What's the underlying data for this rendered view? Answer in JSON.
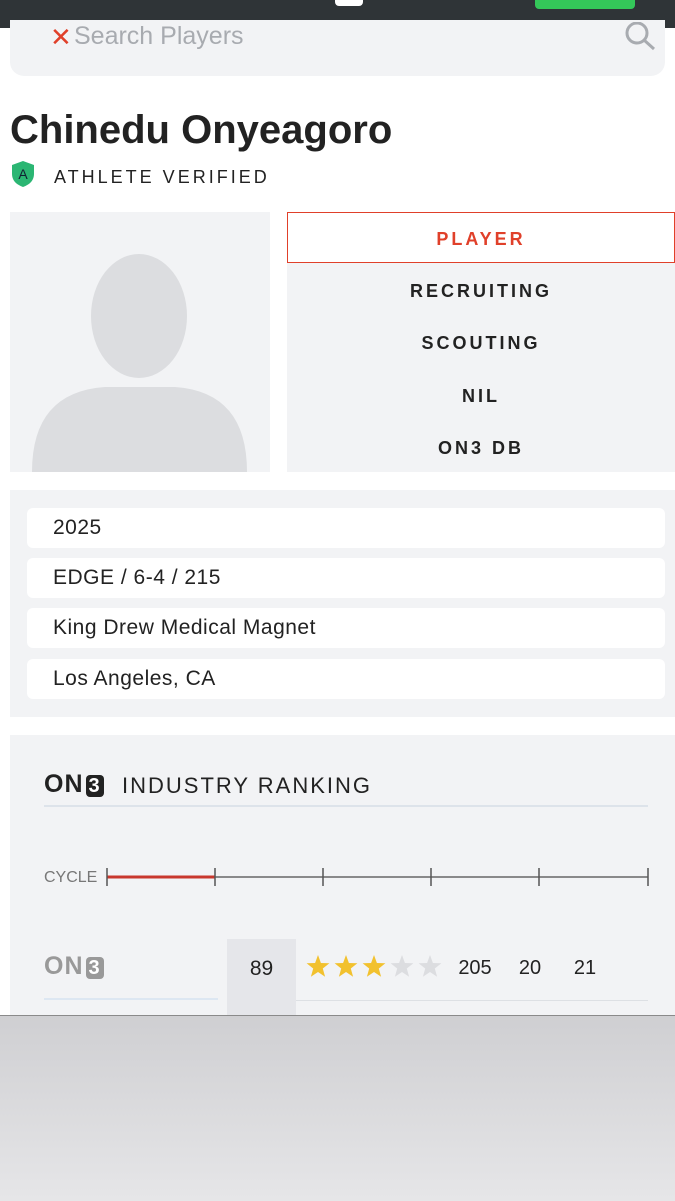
{
  "search": {
    "placeholder": "Search Players"
  },
  "player": {
    "name": "Chinedu Onyeagoro",
    "badge_letter": "A",
    "verified": "ATHLETE VERIFIED"
  },
  "tabs": [
    "PLAYER",
    "RECRUITING",
    "SCOUTING",
    "NIL",
    "ON3 DB"
  ],
  "info": [
    "2025",
    "EDGE / 6-4 / 215",
    "King Drew Medical Magnet",
    "Los Angeles, CA"
  ],
  "ranking": {
    "brand": {
      "name": "ON",
      "number": "3"
    },
    "title": "INDUSTRY RANKING",
    "cycle_label": "CYCLE",
    "row": {
      "brand": {
        "name": "ON",
        "number": "3"
      },
      "rating": 89,
      "stars": {
        "value": 3,
        "out_of": 5
      },
      "national": 205,
      "position": 20,
      "state": 21
    }
  }
}
